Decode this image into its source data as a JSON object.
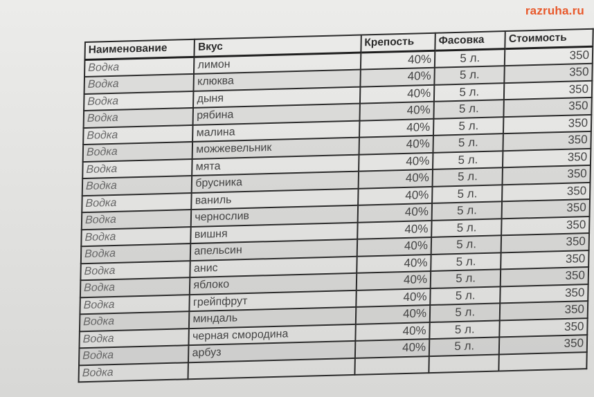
{
  "watermark": "razruha.ru",
  "table": {
    "headers": [
      "Наименование",
      "Вкус",
      "Крепость",
      "Фасовка",
      "Стоимость"
    ],
    "rows": [
      {
        "name": "Водка",
        "flavor": "лимон",
        "strength": "40%",
        "package": "5 л.",
        "price": "350"
      },
      {
        "name": "Водка",
        "flavor": "клюква",
        "strength": "40%",
        "package": "5 л.",
        "price": "350"
      },
      {
        "name": "Водка",
        "flavor": "дыня",
        "strength": "40%",
        "package": "5 л.",
        "price": "350"
      },
      {
        "name": "Водка",
        "flavor": "рябина",
        "strength": "40%",
        "package": "5 л.",
        "price": "350"
      },
      {
        "name": "Водка",
        "flavor": "малина",
        "strength": "40%",
        "package": "5 л.",
        "price": "350"
      },
      {
        "name": "Водка",
        "flavor": "можжевельник",
        "strength": "40%",
        "package": "5 л.",
        "price": "350"
      },
      {
        "name": "Водка",
        "flavor": "мята",
        "strength": "40%",
        "package": "5 л.",
        "price": "350"
      },
      {
        "name": "Водка",
        "flavor": "брусника",
        "strength": "40%",
        "package": "5 л.",
        "price": "350"
      },
      {
        "name": "Водка",
        "flavor": "ваниль",
        "strength": "40%",
        "package": "5 л.",
        "price": "350"
      },
      {
        "name": "Водка",
        "flavor": "чернослив",
        "strength": "40%",
        "package": "5 л.",
        "price": "350"
      },
      {
        "name": "Водка",
        "flavor": "вишня",
        "strength": "40%",
        "package": "5 л.",
        "price": "350"
      },
      {
        "name": "Водка",
        "flavor": "апельсин",
        "strength": "40%",
        "package": "5 л.",
        "price": "350"
      },
      {
        "name": "Водка",
        "flavor": "анис",
        "strength": "40%",
        "package": "5 л.",
        "price": "350"
      },
      {
        "name": "Водка",
        "flavor": "яблоко",
        "strength": "40%",
        "package": "5 л.",
        "price": "350"
      },
      {
        "name": "Водка",
        "flavor": "грейпфрут",
        "strength": "40%",
        "package": "5 л.",
        "price": "350"
      },
      {
        "name": "Водка",
        "flavor": "миндаль",
        "strength": "40%",
        "package": "5 л.",
        "price": "350"
      },
      {
        "name": "Водка",
        "flavor": "черная смородина",
        "strength": "40%",
        "package": "5 л.",
        "price": "350"
      },
      {
        "name": "Водка",
        "flavor": "арбуз",
        "strength": "40%",
        "package": "5 л.",
        "price": "350"
      },
      {
        "name": "Водка",
        "flavor": "",
        "strength": "",
        "package": "",
        "price": ""
      }
    ]
  }
}
